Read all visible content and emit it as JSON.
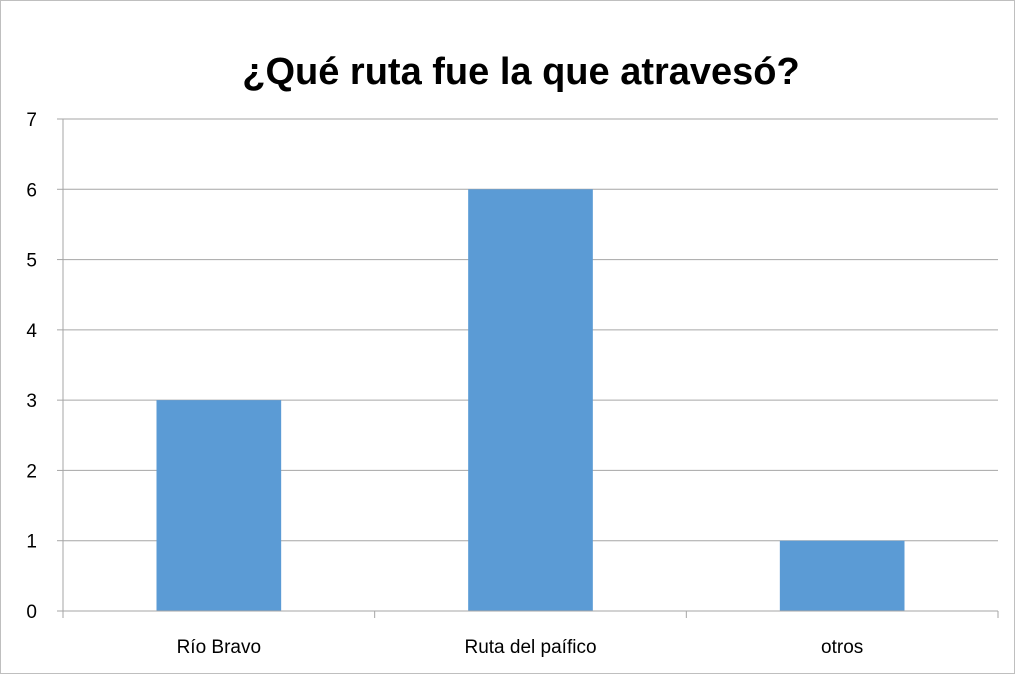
{
  "chart_data": {
    "type": "bar",
    "title": "¿Qué ruta fue la que atravesó?",
    "categories": [
      "Río Bravo",
      "Ruta del paífico",
      "otros"
    ],
    "values": [
      3,
      6,
      1
    ],
    "ylim": [
      0,
      7
    ],
    "yticks": [
      "0",
      "1",
      "2",
      "3",
      "4",
      "5",
      "6",
      "7"
    ],
    "grid": true,
    "legend": "none",
    "bar_color": "#5b9bd5",
    "grid_color": "#a6a6a6"
  }
}
